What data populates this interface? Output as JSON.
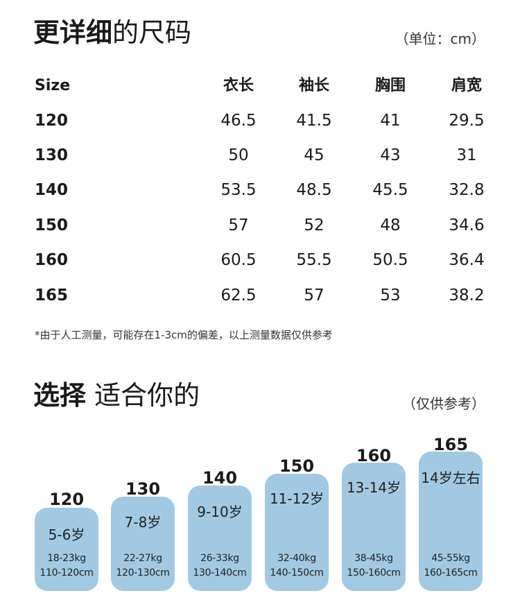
{
  "size_table": {
    "title_bold": "更详细",
    "title_rest": "的尺码",
    "unit": "（单位：cm）",
    "headers": [
      "Size",
      "衣长",
      "袖长",
      "胸围",
      "肩宽"
    ],
    "rows": [
      [
        "120",
        "46.5",
        "41.5",
        "41",
        "29.5"
      ],
      [
        "130",
        "50",
        "45",
        "43",
        "31"
      ],
      [
        "140",
        "53.5",
        "48.5",
        "45.5",
        "32.8"
      ],
      [
        "150",
        "57",
        "52",
        "48",
        "34.6"
      ],
      [
        "160",
        "60.5",
        "55.5",
        "50.5",
        "36.4"
      ],
      [
        "165",
        "62.5",
        "57",
        "53",
        "38.2"
      ]
    ],
    "footnote": "*由于人工测量，可能存在1-3cm的偏差，以上测量数据仅供参考"
  },
  "selection": {
    "title_bold": "选择",
    "title_rest": "适合你的",
    "note": "（仅供参考）",
    "card_color": "#a2c9e1",
    "cards": [
      {
        "size": "120",
        "age": "5-6岁",
        "weight": "18-23kg",
        "height": "110-120cm"
      },
      {
        "size": "130",
        "age": "7-8岁",
        "weight": "22-27kg",
        "height": "120-130cm"
      },
      {
        "size": "140",
        "age": "9-10岁",
        "weight": "26-33kg",
        "height": "130-140cm"
      },
      {
        "size": "150",
        "age": "11-12岁",
        "weight": "32-40kg",
        "height": "140-150cm"
      },
      {
        "size": "160",
        "age": "13-14岁",
        "weight": "38-45kg",
        "height": "150-160cm"
      },
      {
        "size": "165",
        "age": "14岁左右",
        "weight": "45-55kg",
        "height": "160-165cm"
      }
    ]
  }
}
